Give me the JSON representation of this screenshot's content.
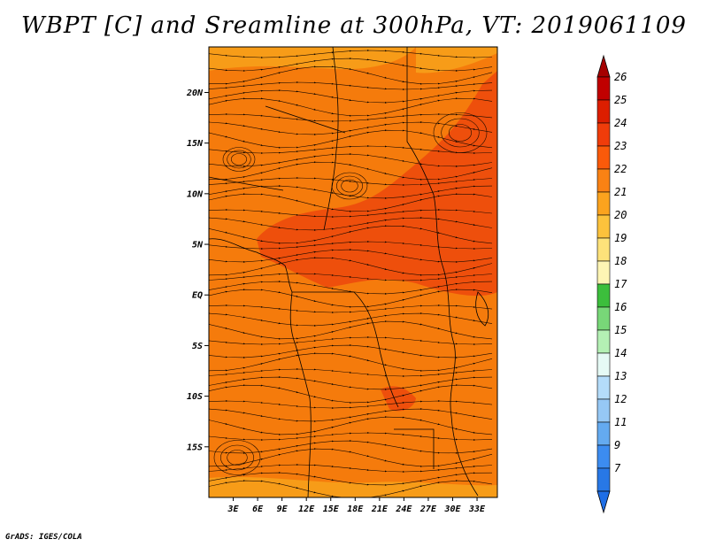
{
  "title": "WBPT [C] and Sreamline at 300hPa, VT: 2019061109",
  "footer": "GrADS: IGES/COLA",
  "map": {
    "lat_range": [
      -20,
      24.5
    ],
    "lon_range": [
      0,
      35.5
    ],
    "lat_ticks": [
      {
        "value": 20,
        "label": "20N"
      },
      {
        "value": 15,
        "label": "15N"
      },
      {
        "value": 10,
        "label": "10N"
      },
      {
        "value": 5,
        "label": "5N"
      },
      {
        "value": 0,
        "label": "EQ"
      },
      {
        "value": -5,
        "label": "5S"
      },
      {
        "value": -10,
        "label": "10S"
      },
      {
        "value": -15,
        "label": "15S"
      }
    ],
    "lon_ticks": [
      {
        "value": 3,
        "label": "3E"
      },
      {
        "value": 6,
        "label": "6E"
      },
      {
        "value": 9,
        "label": "9E"
      },
      {
        "value": 12,
        "label": "12E"
      },
      {
        "value": 15,
        "label": "15E"
      },
      {
        "value": 18,
        "label": "18E"
      },
      {
        "value": 21,
        "label": "21E"
      },
      {
        "value": 24,
        "label": "24E"
      },
      {
        "value": 27,
        "label": "27E"
      },
      {
        "value": 30,
        "label": "30E"
      },
      {
        "value": 33,
        "label": "33E"
      }
    ]
  },
  "colorbar": {
    "top_arrow_color": "#a50000",
    "bottom_arrow_color": "#1e6ee6",
    "bins": [
      {
        "label": "26",
        "color": "#c00000"
      },
      {
        "label": "25",
        "color": "#dc1e00"
      },
      {
        "label": "24",
        "color": "#f03c0a"
      },
      {
        "label": "23",
        "color": "#fa5a0a"
      },
      {
        "label": "22",
        "color": "#fa8214"
      },
      {
        "label": "21",
        "color": "#fba31e"
      },
      {
        "label": "20",
        "color": "#fcc23c"
      },
      {
        "label": "19",
        "color": "#fde27a"
      },
      {
        "label": "18",
        "color": "#fdf5b4"
      },
      {
        "label": "17",
        "color": "#3cbe3c"
      },
      {
        "label": "16",
        "color": "#78d778"
      },
      {
        "label": "15",
        "color": "#b4f0b4"
      },
      {
        "label": "14",
        "color": "#e6faf5"
      },
      {
        "label": "13",
        "color": "#b4dcfa"
      },
      {
        "label": "12",
        "color": "#96c8f5"
      },
      {
        "label": "11",
        "color": "#64aaf0"
      },
      {
        "label": "9",
        "color": "#3c8cf0"
      },
      {
        "label": "7",
        "color": "#2878e6"
      }
    ]
  },
  "field_colors": {
    "background": "#f57b0c",
    "warm": "#ee4f0c",
    "cool": "#f79c18",
    "coastline": "#000000"
  }
}
